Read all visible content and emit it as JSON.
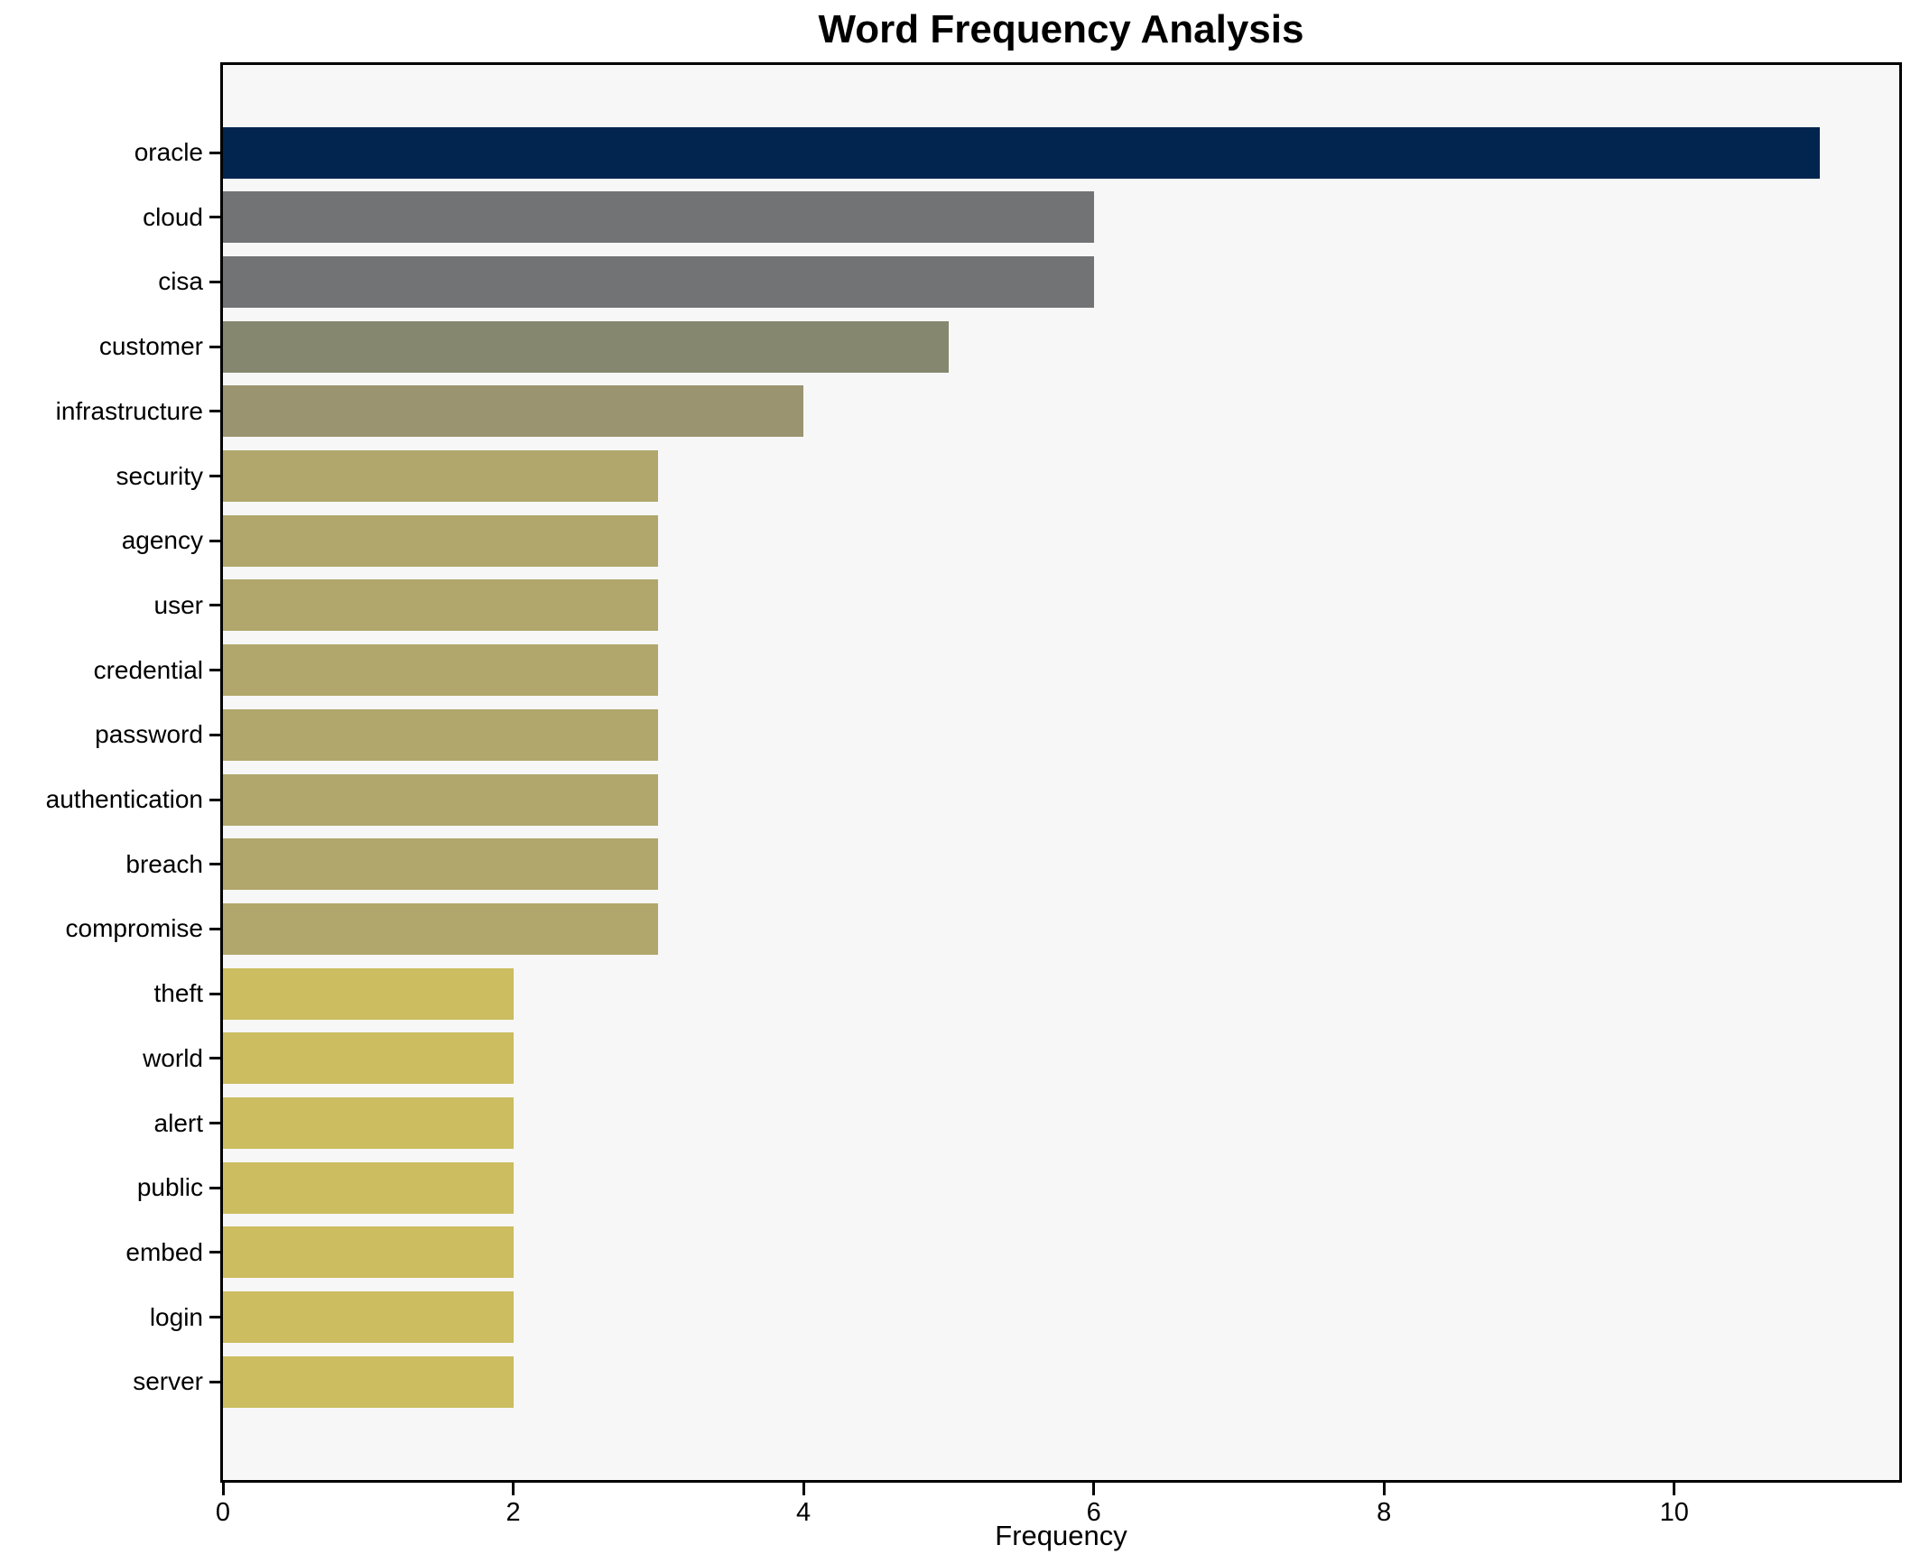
{
  "chart_data": {
    "type": "bar",
    "orientation": "horizontal",
    "title": "Word Frequency Analysis",
    "xlabel": "Frequency",
    "ylabel": "",
    "categories": [
      "oracle",
      "cloud",
      "cisa",
      "customer",
      "infrastructure",
      "security",
      "agency",
      "user",
      "credential",
      "password",
      "authentication",
      "breach",
      "compromise",
      "theft",
      "world",
      "alert",
      "public",
      "embed",
      "login",
      "server"
    ],
    "values": [
      11,
      6,
      6,
      5,
      4,
      3,
      3,
      3,
      3,
      3,
      3,
      3,
      3,
      2,
      2,
      2,
      2,
      2,
      2,
      2
    ],
    "bar_colors": [
      "#01254e",
      "#717375",
      "#717375",
      "#85876f",
      "#9b9471",
      "#b1a76c",
      "#b1a76c",
      "#b1a76c",
      "#b1a76c",
      "#b1a76c",
      "#b1a76c",
      "#b1a76c",
      "#b1a76c",
      "#cbbd60",
      "#cbbd60",
      "#cbbd60",
      "#cbbd60",
      "#cbbd60",
      "#cbbd60",
      "#cbbd60"
    ],
    "xlim": [
      0,
      11.55
    ],
    "xticks": [
      0,
      2,
      4,
      6,
      8,
      10
    ],
    "grid": false,
    "legend_position": "none",
    "plot_background": "#f7f7f8",
    "figure_background": "#ffffff",
    "axis_color": "#000000"
  }
}
